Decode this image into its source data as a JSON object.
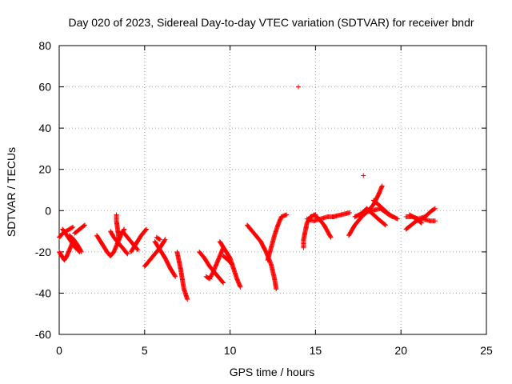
{
  "chart_data": {
    "type": "scatter",
    "title": "Day 020 of 2023, Sidereal Day-to-day VTEC variation (SDTVAR) for receiver bndr",
    "xlabel": "GPS time / hours",
    "ylabel": "SDTVAR / TECUs",
    "xlim": [
      0,
      25
    ],
    "ylim": [
      -60,
      80
    ],
    "xticks": [
      "0",
      "5",
      "10",
      "15",
      "20",
      "25"
    ],
    "yticks": [
      "-60",
      "-40",
      "-20",
      "0",
      "20",
      "40",
      "60",
      "80"
    ],
    "grid": true,
    "marker": "plus",
    "color": "#ff0000",
    "segments": [
      [
        [
          0.0,
          -20
        ],
        [
          0.15,
          -22
        ],
        [
          0.3,
          -24
        ],
        [
          0.45,
          -22
        ],
        [
          0.6,
          -19
        ],
        [
          0.75,
          -16
        ]
      ],
      [
        [
          0.0,
          -13
        ],
        [
          0.2,
          -11
        ],
        [
          0.4,
          -10
        ],
        [
          0.6,
          -9
        ],
        [
          0.8,
          -8
        ]
      ],
      [
        [
          0.2,
          -9
        ],
        [
          0.45,
          -12
        ],
        [
          0.7,
          -15
        ],
        [
          0.95,
          -18
        ],
        [
          1.2,
          -20
        ]
      ],
      [
        [
          0.6,
          -12
        ],
        [
          0.85,
          -14
        ],
        [
          1.1,
          -17
        ],
        [
          1.3,
          -20
        ]
      ],
      [
        [
          0.9,
          -11
        ],
        [
          1.2,
          -9
        ],
        [
          1.5,
          -7
        ]
      ],
      [
        [
          2.2,
          -12
        ],
        [
          2.5,
          -16
        ],
        [
          2.8,
          -20
        ],
        [
          3.0,
          -22
        ],
        [
          3.2,
          -20
        ],
        [
          3.4,
          -16
        ],
        [
          3.6,
          -12
        ],
        [
          3.8,
          -9
        ]
      ],
      [
        [
          3.0,
          -10
        ],
        [
          3.2,
          -13
        ],
        [
          3.5,
          -16
        ],
        [
          3.8,
          -19
        ],
        [
          4.0,
          -21
        ]
      ],
      [
        [
          3.35,
          -2
        ],
        [
          3.35,
          -5
        ],
        [
          3.4,
          -8
        ],
        [
          3.45,
          -11
        ],
        [
          3.5,
          -14
        ]
      ],
      [
        [
          3.7,
          -10
        ],
        [
          4.0,
          -13
        ],
        [
          4.3,
          -16
        ],
        [
          4.6,
          -19
        ]
      ],
      [
        [
          4.2,
          -20
        ],
        [
          4.5,
          -16
        ],
        [
          4.8,
          -12
        ],
        [
          5.1,
          -9
        ]
      ],
      [
        [
          5.0,
          -27
        ],
        [
          5.3,
          -24
        ],
        [
          5.6,
          -21
        ],
        [
          5.9,
          -18
        ],
        [
          6.2,
          -14
        ]
      ],
      [
        [
          5.6,
          -15
        ],
        [
          5.9,
          -19
        ],
        [
          6.2,
          -23
        ],
        [
          6.5,
          -28
        ],
        [
          6.8,
          -32
        ]
      ],
      [
        [
          5.7,
          -13
        ],
        [
          5.9,
          -14
        ]
      ],
      [
        [
          6.9,
          -20
        ],
        [
          7.0,
          -24
        ],
        [
          7.1,
          -28
        ],
        [
          7.2,
          -33
        ],
        [
          7.3,
          -38
        ],
        [
          7.5,
          -43
        ]
      ],
      [
        [
          8.2,
          -20
        ],
        [
          8.5,
          -23
        ],
        [
          8.8,
          -27
        ],
        [
          9.1,
          -30
        ],
        [
          9.4,
          -33
        ],
        [
          9.6,
          -35
        ]
      ],
      [
        [
          8.8,
          -33
        ],
        [
          9.0,
          -30
        ],
        [
          9.2,
          -26
        ],
        [
          9.4,
          -22
        ],
        [
          9.6,
          -18
        ]
      ],
      [
        [
          8.6,
          -32
        ],
        [
          8.8,
          -33
        ]
      ],
      [
        [
          9.4,
          -15
        ],
        [
          9.7,
          -19
        ],
        [
          10.0,
          -23
        ],
        [
          10.2,
          -28
        ],
        [
          10.4,
          -33
        ],
        [
          10.6,
          -37
        ]
      ],
      [
        [
          9.6,
          -22
        ],
        [
          9.9,
          -24
        ],
        [
          10.1,
          -26
        ]
      ],
      [
        [
          11.0,
          -7
        ],
        [
          11.4,
          -11
        ],
        [
          11.8,
          -15
        ],
        [
          12.1,
          -20
        ],
        [
          12.4,
          -26
        ],
        [
          12.6,
          -33
        ],
        [
          12.7,
          -38
        ]
      ],
      [
        [
          12.2,
          -24
        ],
        [
          12.4,
          -18
        ],
        [
          12.6,
          -12
        ],
        [
          12.8,
          -7
        ],
        [
          13.0,
          -3
        ],
        [
          13.3,
          -2
        ]
      ],
      [
        [
          14.0,
          60
        ]
      ],
      [
        [
          14.3,
          -18
        ],
        [
          14.3,
          -14
        ],
        [
          14.4,
          -10
        ],
        [
          14.5,
          -6
        ],
        [
          14.7,
          -3
        ],
        [
          15.0,
          -2
        ]
      ],
      [
        [
          14.5,
          -4
        ],
        [
          14.9,
          -5
        ],
        [
          15.3,
          -4
        ],
        [
          15.7,
          -3
        ],
        [
          16.1,
          -3
        ]
      ],
      [
        [
          14.9,
          -2
        ],
        [
          15.2,
          -4
        ],
        [
          15.5,
          -7
        ],
        [
          15.7,
          -10
        ],
        [
          15.9,
          -13
        ]
      ],
      [
        [
          16.0,
          -3
        ],
        [
          16.5,
          -2
        ],
        [
          17.0,
          -1
        ]
      ],
      [
        [
          16.95,
          -12
        ],
        [
          17.3,
          -7
        ],
        [
          17.7,
          -3
        ],
        [
          18.1,
          0
        ],
        [
          18.4,
          3
        ],
        [
          18.7,
          8
        ],
        [
          18.9,
          12
        ]
      ],
      [
        [
          17.3,
          -3
        ],
        [
          17.8,
          -1
        ],
        [
          18.3,
          0
        ],
        [
          18.8,
          1
        ],
        [
          19.3,
          -2
        ],
        [
          19.8,
          -4
        ]
      ],
      [
        [
          17.6,
          -2
        ],
        [
          18.0,
          1
        ],
        [
          18.4,
          -2
        ],
        [
          18.8,
          -5
        ],
        [
          19.1,
          -7
        ]
      ],
      [
        [
          17.8,
          17
        ]
      ],
      [
        [
          18.4,
          5
        ],
        [
          18.8,
          2
        ],
        [
          19.2,
          -1
        ],
        [
          19.5,
          -3
        ]
      ],
      [
        [
          20.3,
          -9
        ],
        [
          20.6,
          -7
        ],
        [
          20.9,
          -5
        ],
        [
          21.3,
          -4
        ],
        [
          21.7,
          -5
        ],
        [
          22.0,
          -5
        ]
      ],
      [
        [
          20.3,
          -3
        ],
        [
          20.7,
          -3
        ],
        [
          21.0,
          -4
        ],
        [
          21.4,
          -3
        ],
        [
          21.8,
          0
        ],
        [
          22.0,
          1
        ]
      ],
      [
        [
          20.5,
          -2
        ],
        [
          20.9,
          -4
        ],
        [
          21.2,
          -6
        ]
      ]
    ]
  }
}
